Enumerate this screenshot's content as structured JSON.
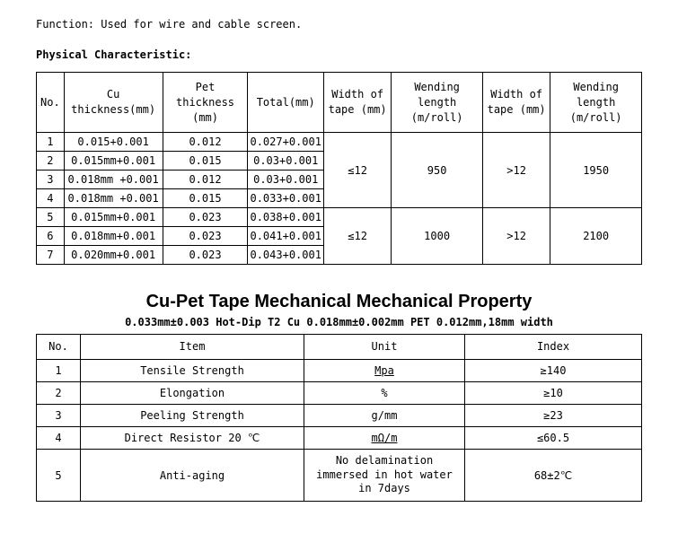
{
  "function_line": "Function: Used for wire and cable screen.",
  "phys_char_title": "Physical Characteristic:",
  "t1": {
    "headers": {
      "no": "No.",
      "cu": "Cu thickness(mm)",
      "pet": "Pet thickness (mm)",
      "total": "Total(mm)",
      "width1": "Width of tape (mm)",
      "wend1": "Wending length (m/roll)",
      "width2": "Width of tape (mm)",
      "wend2": "Wending length (m/roll)"
    },
    "rows": [
      {
        "no": "1",
        "cu": "0.015+0.001",
        "pet": "0.012",
        "total": "0.027+0.001"
      },
      {
        "no": "2",
        "cu": "0.015mm+0.001",
        "pet": "0.015",
        "total": "0.03+0.001"
      },
      {
        "no": "3",
        "cu": "0.018mm +0.001",
        "pet": "0.012",
        "total": "0.03+0.001"
      },
      {
        "no": "4",
        "cu": "0.018mm +0.001",
        "pet": "0.015",
        "total": "0.033+0.001"
      },
      {
        "no": "5",
        "cu": "0.015mm+0.001",
        "pet": "0.023",
        "total": "0.038+0.001"
      },
      {
        "no": "6",
        "cu": "0.018mm+0.001",
        "pet": "0.023",
        "total": "0.041+0.001"
      },
      {
        "no": "7",
        "cu": "0.020mm+0.001",
        "pet": "0.023",
        "total": "0.043+0.001"
      }
    ],
    "group1": {
      "width": "≤12",
      "wend": "950",
      "width2": ">12",
      "wend2": "1950"
    },
    "group2": {
      "width": "≤12",
      "wend": "1000",
      "width2": ">12",
      "wend2": "2100"
    }
  },
  "big_title": "Cu-Pet Tape Mechanical Mechanical Property",
  "subtitle": "0.033mm±0.003  Hot-Dip T2 Cu  0.018mm±0.002mm PET 0.012mm,18mm width",
  "t2": {
    "headers": {
      "no": "No.",
      "item": "Item",
      "unit": "Unit",
      "index": "Index"
    },
    "rows": [
      {
        "no": "1",
        "item": "Tensile Strength",
        "unit": "Mpa",
        "index": "≥140"
      },
      {
        "no": "2",
        "item": "Elongation",
        "unit": "%",
        "index": "≥10"
      },
      {
        "no": "3",
        "item": "Peeling Strength",
        "unit": "g/mm",
        "index": "≥23"
      },
      {
        "no": "4",
        "item": "Direct Resistor 20 ℃",
        "unit": "mΩ/m",
        "index": "≤60.5"
      },
      {
        "no": "5",
        "item": "Anti-aging",
        "unit": "No delamination immersed in hot water in 7days",
        "index": "68±2℃"
      }
    ]
  }
}
